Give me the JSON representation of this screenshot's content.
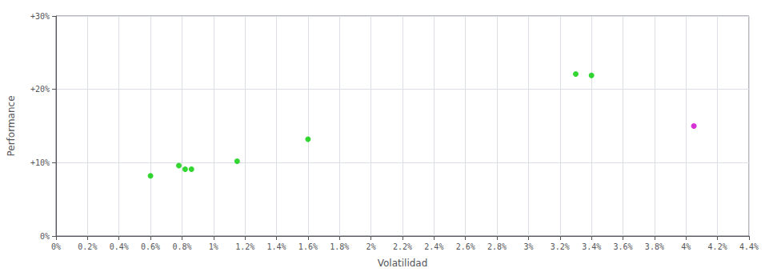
{
  "chart_data": {
    "type": "scatter",
    "xlabel": "Volatilidad",
    "ylabel": "Performance",
    "series": [
      {
        "color": "#00cc00",
        "x": [
          0.006,
          0.0078,
          0.0082,
          0.0086,
          0.0115,
          0.016,
          0.033,
          0.034
        ],
        "values": [
          0.082,
          0.096,
          0.091,
          0.091,
          0.102,
          0.132,
          0.221,
          0.219
        ]
      },
      {
        "color": "#cc00cc",
        "x": [
          0.0405
        ],
        "values": [
          0.15
        ]
      }
    ],
    "xlim": [
      0.0,
      0.044
    ],
    "ylim": [
      0.0,
      0.3
    ],
    "xticks": [
      {
        "value": 0.0,
        "label": "0%"
      },
      {
        "value": 0.002,
        "label": "0.2%"
      },
      {
        "value": 0.004,
        "label": "0.4%"
      },
      {
        "value": 0.006,
        "label": "0.6%"
      },
      {
        "value": 0.008,
        "label": "0.8%"
      },
      {
        "value": 0.01,
        "label": "1%"
      },
      {
        "value": 0.012,
        "label": "1.2%"
      },
      {
        "value": 0.014,
        "label": "1.4%"
      },
      {
        "value": 0.016,
        "label": "1.6%"
      },
      {
        "value": 0.018,
        "label": "1.8%"
      },
      {
        "value": 0.02,
        "label": "2%"
      },
      {
        "value": 0.022,
        "label": "2.2%"
      },
      {
        "value": 0.024,
        "label": "2.4%"
      },
      {
        "value": 0.026,
        "label": "2.6%"
      },
      {
        "value": 0.028,
        "label": "2.8%"
      },
      {
        "value": 0.03,
        "label": "3%"
      },
      {
        "value": 0.032,
        "label": "3.2%"
      },
      {
        "value": 0.034,
        "label": "3.4%"
      },
      {
        "value": 0.036,
        "label": "3.6%"
      },
      {
        "value": 0.038,
        "label": "3.8%"
      },
      {
        "value": 0.04,
        "label": "4%"
      },
      {
        "value": 0.042,
        "label": "4.2%"
      },
      {
        "value": 0.044,
        "label": "4.4%"
      }
    ],
    "yticks": [
      {
        "value": 0.0,
        "label": "0%"
      },
      {
        "value": 0.1,
        "label": "+10%"
      },
      {
        "value": 0.2,
        "label": "+20%"
      },
      {
        "value": 0.3,
        "label": "+30%"
      }
    ],
    "grid": true
  }
}
